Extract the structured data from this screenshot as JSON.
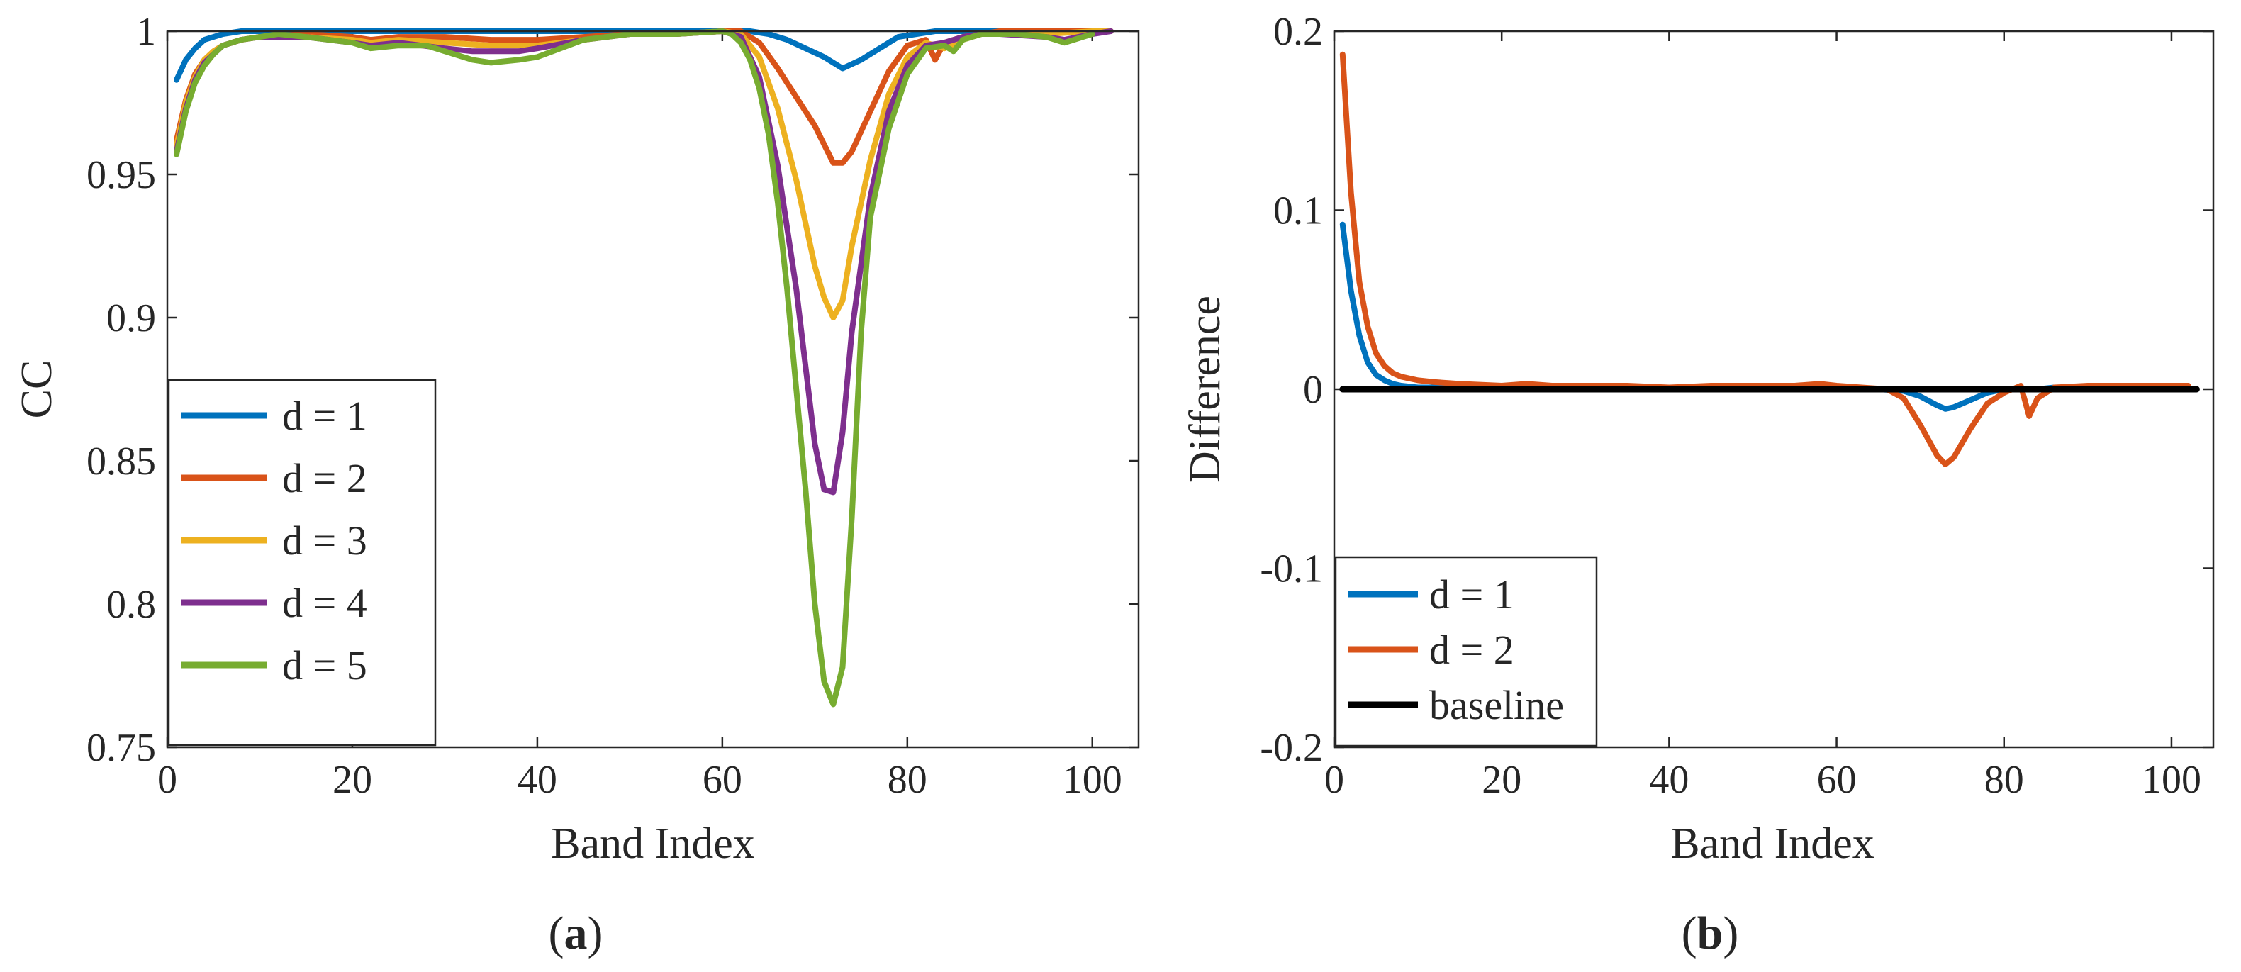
{
  "chart_data": [
    {
      "type": "line",
      "panel": "a",
      "caption": {
        "open": "(",
        "letter": "a",
        "close": ")"
      },
      "xlabel": "Band Index",
      "ylabel": "CC",
      "xlim": [
        0,
        105
      ],
      "ylim": [
        0.75,
        1.0
      ],
      "xticks": [
        0,
        20,
        40,
        60,
        80,
        100
      ],
      "xtick_labels": [
        "0",
        "20",
        "40",
        "60",
        "80",
        "100"
      ],
      "yticks": [
        0.75,
        0.8,
        0.85,
        0.9,
        0.95,
        1.0
      ],
      "ytick_labels": [
        "0.75",
        "0.8",
        "0.85",
        "0.9",
        "0.95",
        "1"
      ],
      "legend_position": "bottom-left",
      "series": [
        {
          "name": "d = 1",
          "color": "#0072BD",
          "x": [
            1,
            2,
            3,
            4,
            5,
            6,
            8,
            10,
            20,
            40,
            60,
            63,
            65,
            67,
            69,
            71,
            73,
            75,
            77,
            79,
            81,
            83,
            85,
            90,
            95,
            100,
            102
          ],
          "y": [
            0.983,
            0.99,
            0.994,
            0.997,
            0.998,
            0.999,
            1.0,
            1.0,
            1.0,
            1.0,
            1.0,
            1.0,
            0.999,
            0.997,
            0.994,
            0.991,
            0.987,
            0.99,
            0.994,
            0.998,
            0.999,
            1.0,
            1.0,
            1.0,
            1.0,
            1.0,
            1.0
          ]
        },
        {
          "name": "d = 2",
          "color": "#D95319",
          "x": [
            1,
            2,
            3,
            4,
            5,
            6,
            8,
            10,
            15,
            20,
            22,
            25,
            30,
            35,
            40,
            45,
            50,
            55,
            60,
            62,
            64,
            66,
            68,
            70,
            72,
            73,
            74,
            76,
            78,
            80,
            82,
            83,
            84,
            86,
            88,
            90,
            95,
            100,
            102
          ],
          "y": [
            0.962,
            0.976,
            0.985,
            0.99,
            0.993,
            0.995,
            0.997,
            0.998,
            0.999,
            0.998,
            0.997,
            0.998,
            0.998,
            0.997,
            0.997,
            0.998,
            0.999,
            0.999,
            1.0,
            1.0,
            0.996,
            0.987,
            0.977,
            0.967,
            0.954,
            0.954,
            0.958,
            0.972,
            0.986,
            0.995,
            0.997,
            0.99,
            0.996,
            0.998,
            0.999,
            1.0,
            1.0,
            1.0,
            1.0
          ]
        },
        {
          "name": "d = 3",
          "color": "#EDB120",
          "x": [
            1,
            2,
            3,
            4,
            5,
            6,
            8,
            10,
            15,
            20,
            22,
            25,
            30,
            35,
            40,
            45,
            50,
            55,
            60,
            62,
            64,
            66,
            68,
            70,
            71,
            72,
            73,
            74,
            76,
            78,
            80,
            82,
            84,
            86,
            88,
            90,
            95,
            100,
            102
          ],
          "y": [
            0.96,
            0.975,
            0.984,
            0.99,
            0.993,
            0.995,
            0.997,
            0.998,
            0.998,
            0.997,
            0.996,
            0.997,
            0.996,
            0.995,
            0.995,
            0.997,
            0.999,
            0.999,
            1.0,
            0.999,
            0.991,
            0.973,
            0.948,
            0.918,
            0.907,
            0.9,
            0.906,
            0.925,
            0.955,
            0.978,
            0.991,
            0.996,
            0.994,
            0.997,
            0.999,
            0.999,
            0.999,
            1.0,
            1.0
          ]
        },
        {
          "name": "d = 4",
          "color": "#7E2F8E",
          "x": [
            1,
            2,
            3,
            4,
            5,
            6,
            8,
            10,
            15,
            20,
            22,
            25,
            30,
            33,
            35,
            38,
            40,
            45,
            50,
            55,
            60,
            62,
            64,
            66,
            68,
            70,
            71,
            72,
            73,
            74,
            76,
            78,
            80,
            82,
            84,
            86,
            88,
            90,
            95,
            97,
            100,
            102
          ],
          "y": [
            0.958,
            0.973,
            0.983,
            0.989,
            0.992,
            0.995,
            0.997,
            0.998,
            0.998,
            0.996,
            0.995,
            0.996,
            0.994,
            0.993,
            0.993,
            0.993,
            0.994,
            0.997,
            0.999,
            0.999,
            1.0,
            0.998,
            0.984,
            0.953,
            0.91,
            0.856,
            0.84,
            0.839,
            0.86,
            0.895,
            0.942,
            0.972,
            0.988,
            0.995,
            0.996,
            0.998,
            0.999,
            0.999,
            0.998,
            0.997,
            0.999,
            1.0
          ]
        },
        {
          "name": "d = 5",
          "color": "#77AC30",
          "x": [
            1,
            2,
            3,
            4,
            5,
            6,
            8,
            10,
            12,
            15,
            20,
            22,
            25,
            28,
            30,
            33,
            35,
            38,
            40,
            45,
            50,
            55,
            60,
            61,
            62,
            63,
            64,
            65,
            66,
            67,
            68,
            69,
            70,
            71,
            72,
            73,
            74,
            75,
            76,
            78,
            80,
            82,
            84,
            85,
            86,
            88,
            90,
            92,
            95,
            97,
            100
          ],
          "y": [
            0.957,
            0.972,
            0.982,
            0.988,
            0.992,
            0.995,
            0.997,
            0.998,
            0.999,
            0.998,
            0.996,
            0.994,
            0.995,
            0.995,
            0.993,
            0.99,
            0.989,
            0.99,
            0.991,
            0.997,
            0.999,
            0.999,
            1.0,
            0.999,
            0.996,
            0.99,
            0.98,
            0.964,
            0.94,
            0.91,
            0.875,
            0.84,
            0.8,
            0.773,
            0.765,
            0.778,
            0.83,
            0.895,
            0.935,
            0.966,
            0.985,
            0.994,
            0.995,
            0.993,
            0.997,
            0.999,
            0.999,
            0.999,
            0.998,
            0.996,
            0.999
          ]
        }
      ]
    },
    {
      "type": "line",
      "panel": "b",
      "caption": {
        "open": "(",
        "letter": "b",
        "close": ")"
      },
      "xlabel": "Band Index",
      "ylabel": "Difference",
      "xlim": [
        0,
        105
      ],
      "ylim": [
        -0.2,
        0.2
      ],
      "xticks": [
        0,
        20,
        40,
        60,
        80,
        100
      ],
      "xtick_labels": [
        "0",
        "20",
        "40",
        "60",
        "80",
        "100"
      ],
      "yticks": [
        -0.2,
        -0.1,
        0,
        0.1,
        0.2
      ],
      "ytick_labels": [
        "-0.2",
        "-0.1",
        "0",
        "0.1",
        "0.2"
      ],
      "legend_position": "bottom-left",
      "series": [
        {
          "name": "d = 1",
          "color": "#0072BD",
          "x": [
            1,
            2,
            3,
            4,
            5,
            6,
            7,
            8,
            10,
            12,
            15,
            20,
            30,
            40,
            50,
            60,
            65,
            68,
            70,
            72,
            73,
            74,
            76,
            78,
            80,
            82,
            84,
            86,
            90,
            100,
            102
          ],
          "y": [
            0.092,
            0.055,
            0.03,
            0.015,
            0.008,
            0.005,
            0.003,
            0.002,
            0.001,
            0.001,
            0.001,
            0.0,
            0.0,
            0.0,
            0.0,
            0.0,
            0.0,
            -0.001,
            -0.004,
            -0.009,
            -0.011,
            -0.01,
            -0.006,
            -0.002,
            0.0,
            0.0,
            0.0,
            0.001,
            0.0,
            0.0,
            0.0
          ]
        },
        {
          "name": "d = 2",
          "color": "#D95319",
          "x": [
            1,
            2,
            3,
            4,
            5,
            6,
            7,
            8,
            10,
            12,
            15,
            20,
            23,
            26,
            30,
            35,
            40,
            45,
            50,
            55,
            58,
            60,
            63,
            66,
            68,
            70,
            72,
            73,
            74,
            76,
            78,
            80,
            82,
            83,
            84,
            86,
            90,
            95,
            100,
            102
          ],
          "y": [
            0.187,
            0.11,
            0.06,
            0.035,
            0.02,
            0.013,
            0.009,
            0.007,
            0.005,
            0.004,
            0.003,
            0.002,
            0.003,
            0.002,
            0.002,
            0.002,
            0.001,
            0.002,
            0.002,
            0.002,
            0.003,
            0.002,
            0.001,
            0.0,
            -0.005,
            -0.02,
            -0.037,
            -0.042,
            -0.038,
            -0.022,
            -0.008,
            -0.002,
            0.002,
            -0.015,
            -0.005,
            0.001,
            0.002,
            0.002,
            0.002,
            0.002
          ]
        },
        {
          "name": "baseline",
          "color": "#000000",
          "x": [
            1,
            103
          ],
          "y": [
            0,
            0
          ]
        }
      ]
    }
  ]
}
